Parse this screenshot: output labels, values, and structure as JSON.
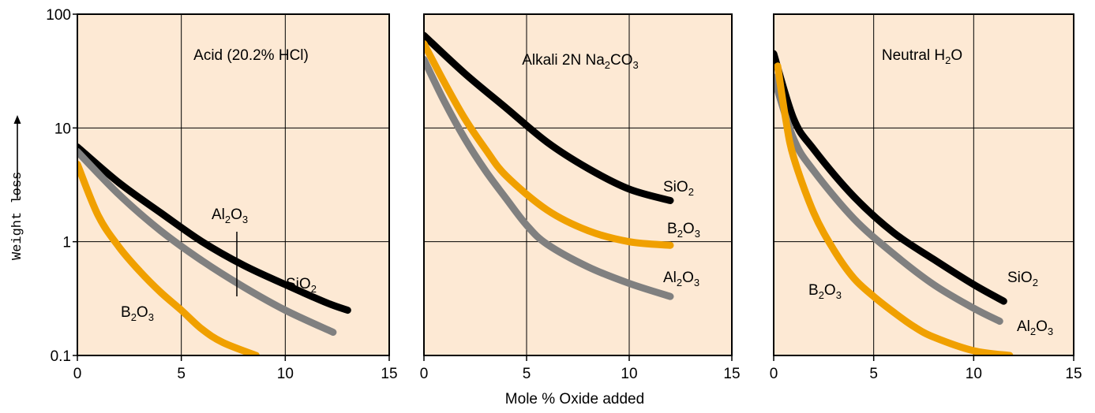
{
  "figure": {
    "ylabel": "Weight loss",
    "xlabel": "Mole % Oxide added"
  },
  "chart_data": [
    {
      "type": "line",
      "title": {
        "base": "Acid (20.2% HCl)",
        "sub": ""
      },
      "yscale": "log",
      "xlim": [
        0,
        15
      ],
      "ylim": [
        0.1,
        100
      ],
      "xticks": [
        "0",
        "5",
        "10",
        "15"
      ],
      "yticks": [
        "0.1",
        "1",
        "10",
        "100"
      ],
      "show_yticks": true,
      "grid": true,
      "colors": {
        "SiO2": "#000000",
        "Al2O3": "#808080",
        "B2O3": "#f0a000"
      },
      "series": [
        {
          "name": "SiO2",
          "label": {
            "base": "SiO",
            "sub": "2",
            "tail": ""
          },
          "x": [
            0,
            2,
            4,
            6,
            8,
            10,
            12,
            13
          ],
          "y": [
            6.8,
            3.3,
            1.8,
            1.0,
            0.62,
            0.42,
            0.29,
            0.25
          ]
        },
        {
          "name": "Al2O3",
          "label": {
            "base": "Al",
            "sub": "2",
            "tail": "O",
            "sub2": "3"
          },
          "x": [
            0,
            2,
            4,
            6,
            8,
            10,
            12.3
          ],
          "y": [
            6.2,
            2.6,
            1.25,
            0.68,
            0.4,
            0.25,
            0.16
          ]
        },
        {
          "name": "B2O3",
          "label": {
            "base": "B",
            "sub": "2",
            "tail": "O",
            "sub2": "3"
          },
          "x": [
            0,
            1,
            2,
            3,
            4,
            5,
            6,
            7,
            8.6
          ],
          "y": [
            4.8,
            1.7,
            0.9,
            0.55,
            0.36,
            0.25,
            0.17,
            0.13,
            0.1
          ]
        }
      ]
    },
    {
      "type": "line",
      "title": {
        "base": "Alkali 2N Na",
        "sub": "2",
        "tail": "CO",
        "sub2": "3"
      },
      "yscale": "log",
      "xlim": [
        0,
        15
      ],
      "ylim": [
        0.1,
        100
      ],
      "xticks": [
        "0",
        "5",
        "10",
        "15"
      ],
      "yticks": [],
      "show_yticks": false,
      "grid": true,
      "series": [
        {
          "name": "SiO2",
          "label": {
            "base": "SiO",
            "sub": "2",
            "tail": ""
          },
          "x": [
            0,
            2,
            4,
            6,
            8,
            10,
            12
          ],
          "y": [
            65,
            30,
            15,
            7.5,
            4.4,
            2.9,
            2.3
          ]
        },
        {
          "name": "B2O3",
          "label": {
            "base": "B",
            "sub": "2",
            "tail": "O",
            "sub2": "3"
          },
          "x": [
            0,
            1,
            2,
            3,
            4,
            6,
            8,
            10,
            12
          ],
          "y": [
            55,
            25,
            12,
            6.5,
            3.8,
            1.9,
            1.25,
            1.0,
            0.93
          ]
        },
        {
          "name": "Al2O3",
          "label": {
            "base": "Al",
            "sub": "2",
            "tail": "O",
            "sub2": "3"
          },
          "x": [
            0,
            1,
            2,
            3,
            4,
            5,
            6,
            8,
            10,
            12
          ],
          "y": [
            40,
            17,
            8,
            4.2,
            2.4,
            1.4,
            0.95,
            0.6,
            0.43,
            0.33
          ]
        }
      ]
    },
    {
      "type": "line",
      "title": {
        "base": "Neutral H",
        "sub": "2",
        "tail": "O"
      },
      "yscale": "log",
      "xlim": [
        0,
        15
      ],
      "ylim": [
        0.1,
        100
      ],
      "xticks": [
        "0",
        "5",
        "10",
        "15"
      ],
      "yticks": [],
      "show_yticks": false,
      "grid": true,
      "series": [
        {
          "name": "SiO2",
          "label": {
            "base": "SiO",
            "sub": "2",
            "tail": ""
          },
          "x": [
            0,
            1,
            2,
            4,
            6,
            8,
            10,
            11.5
          ],
          "y": [
            45,
            12,
            6.5,
            2.5,
            1.2,
            0.7,
            0.42,
            0.3
          ]
        },
        {
          "name": "Al2O3",
          "label": {
            "base": "Al",
            "sub": "2",
            "tail": "O",
            "sub2": "3"
          },
          "x": [
            0,
            1,
            2,
            4,
            6,
            8,
            10,
            11.3
          ],
          "y": [
            28,
            8,
            4.2,
            1.6,
            0.78,
            0.42,
            0.26,
            0.2
          ]
        },
        {
          "name": "B2O3",
          "label": {
            "base": "B",
            "sub": "2",
            "tail": "O",
            "sub2": "3"
          },
          "x": [
            0.2,
            0.6,
            1,
            2,
            3,
            4,
            5,
            6,
            7,
            8,
            10,
            11.8
          ],
          "y": [
            35,
            12,
            5.5,
            1.8,
            0.85,
            0.48,
            0.33,
            0.24,
            0.18,
            0.145,
            0.11,
            0.1
          ]
        }
      ]
    }
  ]
}
